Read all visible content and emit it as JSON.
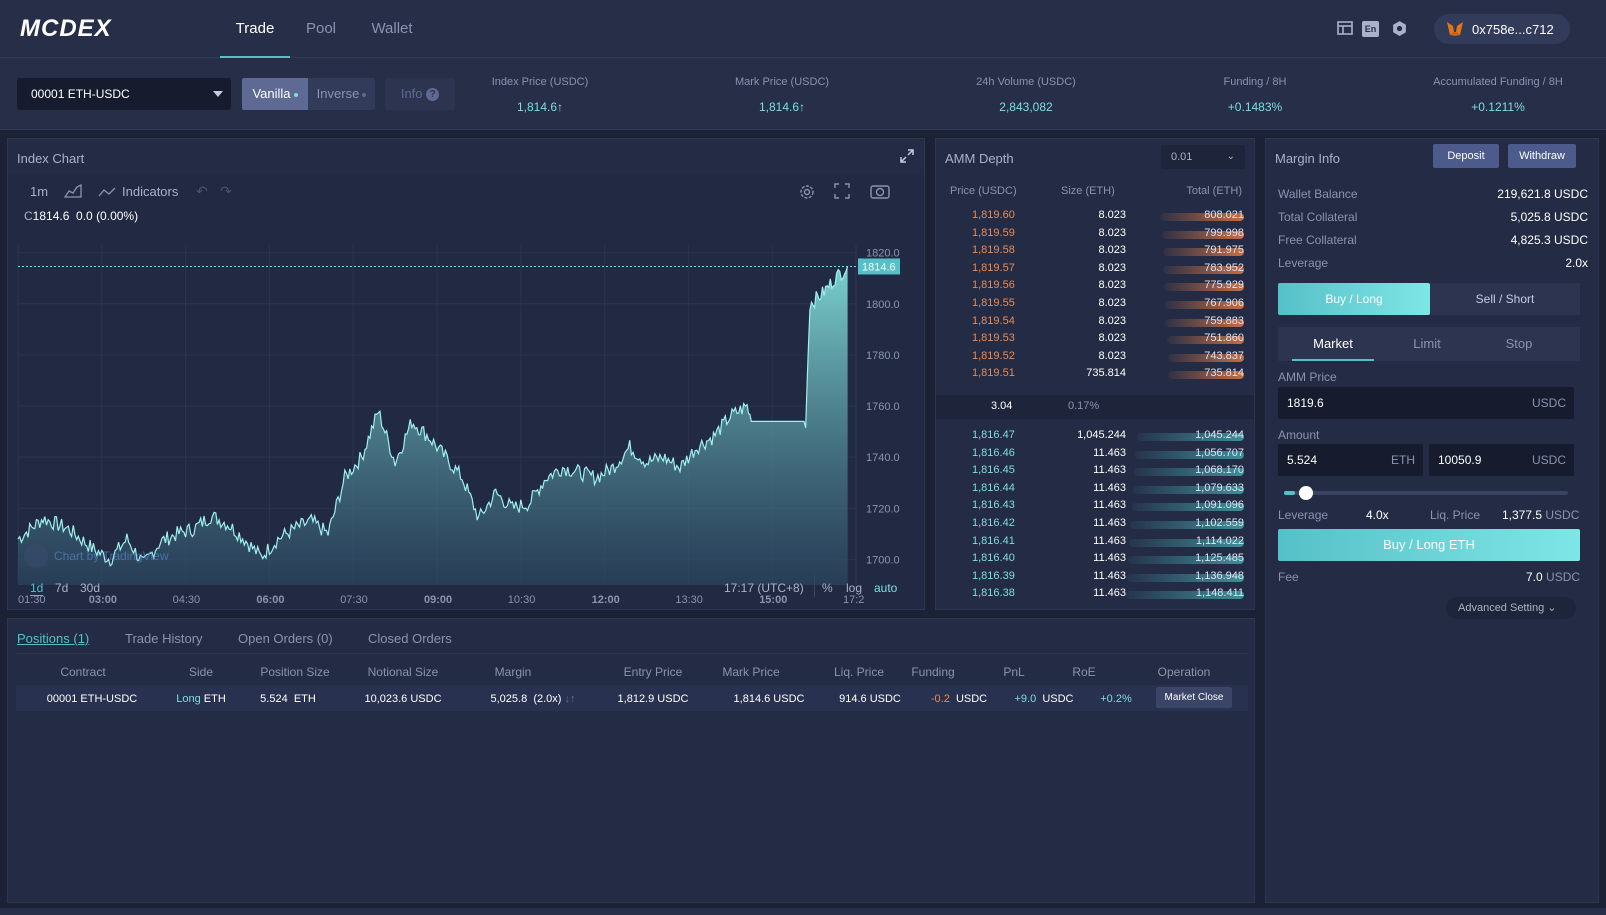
{
  "brand": "MCDEX",
  "nav": {
    "tabs": [
      "Trade",
      "Pool",
      "Wallet"
    ],
    "active": "Trade"
  },
  "header": {
    "lang": "En",
    "wallet": "0x758e...c712"
  },
  "market": {
    "selected": "00001 ETH-USDC",
    "modes": {
      "vanilla": "Vanilla",
      "inverse": "Inverse",
      "info": "Info"
    },
    "stats": [
      {
        "label": "Index Price (USDC)",
        "value": "1,814.6↑"
      },
      {
        "label": "Mark Price (USDC)",
        "value": "1,814.6↑"
      },
      {
        "label": "24h Volume (USDC)",
        "value": "2,843,082"
      },
      {
        "label": "Funding / 8H",
        "value": "+0.1483%"
      },
      {
        "label": "Accumulated Funding / 8H",
        "value": "+0.1211%"
      }
    ]
  },
  "chart": {
    "title": "Index Chart",
    "interval": "1m",
    "indicators": "Indicators",
    "close_prefix": "C",
    "close": "1814.6",
    "change": "0.0 (0.00%)",
    "price_tag": "1814.6",
    "y_ticks": [
      "1820.0",
      "1800.0",
      "1780.0",
      "1760.0",
      "1740.0",
      "1720.0",
      "1700.0"
    ],
    "x_ticks": [
      "01:30",
      "03:00",
      "04:30",
      "06:00",
      "07:30",
      "09:00",
      "10:30",
      "12:00",
      "13:30",
      "15:00",
      "17:2"
    ],
    "ranges": [
      "1d",
      "7d",
      "30d"
    ],
    "time": "17:17 (UTC+8)",
    "pct": "%",
    "log": "log",
    "auto": "auto",
    "watermark": "Chart by TradingView"
  },
  "chart_data": {
    "type": "area",
    "title": "Index Chart",
    "xlabel": "",
    "ylabel": "",
    "ylim": [
      1690,
      1823
    ],
    "x_ticks": [
      "01:30",
      "03:00",
      "04:30",
      "06:00",
      "07:30",
      "09:00",
      "10:30",
      "12:00",
      "13:30",
      "15:00",
      "17:2"
    ],
    "points": [
      [
        0,
        1708
      ],
      [
        0.03,
        1716
      ],
      [
        0.06,
        1712
      ],
      [
        0.09,
        1704
      ],
      [
        0.11,
        1700
      ],
      [
        0.13,
        1708
      ],
      [
        0.15,
        1698
      ],
      [
        0.17,
        1707
      ],
      [
        0.19,
        1710
      ],
      [
        0.21,
        1712
      ],
      [
        0.23,
        1717
      ],
      [
        0.25,
        1714
      ],
      [
        0.27,
        1708
      ],
      [
        0.29,
        1701
      ],
      [
        0.31,
        1708
      ],
      [
        0.33,
        1712
      ],
      [
        0.35,
        1715
      ],
      [
        0.37,
        1710
      ],
      [
        0.39,
        1732
      ],
      [
        0.41,
        1740
      ],
      [
        0.43,
        1758
      ],
      [
        0.45,
        1738
      ],
      [
        0.47,
        1754
      ],
      [
        0.49,
        1748
      ],
      [
        0.51,
        1740
      ],
      [
        0.53,
        1732
      ],
      [
        0.55,
        1716
      ],
      [
        0.57,
        1726
      ],
      [
        0.59,
        1720
      ],
      [
        0.61,
        1722
      ],
      [
        0.63,
        1732
      ],
      [
        0.65,
        1736
      ],
      [
        0.67,
        1734
      ],
      [
        0.69,
        1732
      ],
      [
        0.71,
        1736
      ],
      [
        0.73,
        1744
      ],
      [
        0.75,
        1738
      ],
      [
        0.77,
        1740
      ],
      [
        0.79,
        1736
      ],
      [
        0.81,
        1744
      ],
      [
        0.83,
        1748
      ],
      [
        0.85,
        1756
      ],
      [
        0.87,
        1760
      ],
      [
        0.875,
        1754
      ],
      [
        0.94,
        1754
      ],
      [
        0.945,
        1800
      ],
      [
        0.96,
        1804
      ],
      [
        0.975,
        1810
      ],
      [
        0.99,
        1814.6
      ]
    ]
  },
  "depth": {
    "title": "AMM Depth",
    "step": "0.01",
    "headers": [
      "Price (USDC)",
      "Size (ETH)",
      "Total (ETH)"
    ],
    "asks": [
      {
        "price": "1,819.60",
        "size": "8.023",
        "total": "808.021",
        "fill": 0.67
      },
      {
        "price": "1,819.59",
        "size": "8.023",
        "total": "799.998",
        "fill": 0.66
      },
      {
        "price": "1,819.58",
        "size": "8.023",
        "total": "791.975",
        "fill": 0.65
      },
      {
        "price": "1,819.57",
        "size": "8.023",
        "total": "783.952",
        "fill": 0.65
      },
      {
        "price": "1,819.56",
        "size": "8.023",
        "total": "775.929",
        "fill": 0.64
      },
      {
        "price": "1,819.55",
        "size": "8.023",
        "total": "767.906",
        "fill": 0.63
      },
      {
        "price": "1,819.54",
        "size": "8.023",
        "total": "759.883",
        "fill": 0.63
      },
      {
        "price": "1,819.53",
        "size": "8.023",
        "total": "751.860",
        "fill": 0.62
      },
      {
        "price": "1,819.52",
        "size": "8.023",
        "total": "743.837",
        "fill": 0.61
      },
      {
        "price": "1,819.51",
        "size": "735.814",
        "total": "735.814",
        "fill": 0.61
      }
    ],
    "spread": {
      "value": "3.04",
      "pct": "0.17%"
    },
    "bids": [
      {
        "price": "1,816.47",
        "size": "1,045.244",
        "total": "1,045.244",
        "fill": 0.86
      },
      {
        "price": "1,816.46",
        "size": "11.463",
        "total": "1,056.707",
        "fill": 0.87
      },
      {
        "price": "1,816.45",
        "size": "11.463",
        "total": "1,068.170",
        "fill": 0.88
      },
      {
        "price": "1,816.44",
        "size": "11.463",
        "total": "1,079.633",
        "fill": 0.89
      },
      {
        "price": "1,816.43",
        "size": "11.463",
        "total": "1,091.096",
        "fill": 0.9
      },
      {
        "price": "1,816.42",
        "size": "11.463",
        "total": "1,102.559",
        "fill": 0.91
      },
      {
        "price": "1,816.41",
        "size": "11.463",
        "total": "1,114.022",
        "fill": 0.92
      },
      {
        "price": "1,816.40",
        "size": "11.463",
        "total": "1,125.485",
        "fill": 0.93
      },
      {
        "price": "1,816.39",
        "size": "11.463",
        "total": "1,136.948",
        "fill": 0.94
      },
      {
        "price": "1,816.38",
        "size": "11.463",
        "total": "1,148.411",
        "fill": 0.95
      }
    ]
  },
  "margin": {
    "title": "Margin Info",
    "deposit": "Deposit",
    "withdraw": "Withdraw",
    "rows": [
      {
        "label": "Wallet Balance",
        "value": "219,621.8 USDC"
      },
      {
        "label": "Total Collateral",
        "value": "5,025.8 USDC"
      },
      {
        "label": "Free Collateral",
        "value": "4,825.3 USDC"
      },
      {
        "label": "Leverage",
        "value": "2.0x"
      }
    ],
    "side": {
      "buy": "Buy / Long",
      "sell": "Sell / Short"
    },
    "order_types": [
      "Market",
      "Limit",
      "Stop"
    ],
    "amm_price_label": "AMM Price",
    "amm_price": "1819.6",
    "amm_unit": "USDC",
    "amount_label": "Amount",
    "amount_eth": "5.524",
    "eth": "ETH",
    "amount_usdc": "10050.9",
    "usdc": "USDC",
    "slider_value": 0.04,
    "leverage_label": "Leverage",
    "leverage": "4.0x",
    "liq_label": "Liq. Price",
    "liq": "1,377.5",
    "submit": "Buy / Long ETH",
    "fee_label": "Fee",
    "fee": "7.0",
    "advanced": "Advanced Setting"
  },
  "positions": {
    "tabs": [
      "Positions (1)",
      "Trade History",
      "Open Orders (0)",
      "Closed Orders"
    ],
    "headers": [
      "Contract",
      "Side",
      "Position Size",
      "Notional Size",
      "Margin",
      "Entry Price",
      "Mark Price",
      "Liq. Price",
      "Funding",
      "PnL",
      "RoE",
      "Operation"
    ],
    "row": {
      "contract": "00001 ETH-USDC",
      "side": "Long",
      "side_asset": "ETH",
      "size": "5.524",
      "size_unit": "ETH",
      "notional": "10,023.6 USDC",
      "margin": "5,025.8",
      "margin_lev": "(2.0x)",
      "entry": "1,812.9 USDC",
      "mark": "1,814.6 USDC",
      "liq": "914.6 USDC",
      "funding": "-0.2",
      "funding_unit": "USDC",
      "pnl": "+9.0",
      "pnl_unit": "USDC",
      "roe": "+0.2%",
      "operation": "Market Close"
    }
  },
  "colors": {
    "accent": "#56c0c8",
    "ask": "#e58c57",
    "bid": "#7fdde0",
    "panel": "#242c45"
  }
}
